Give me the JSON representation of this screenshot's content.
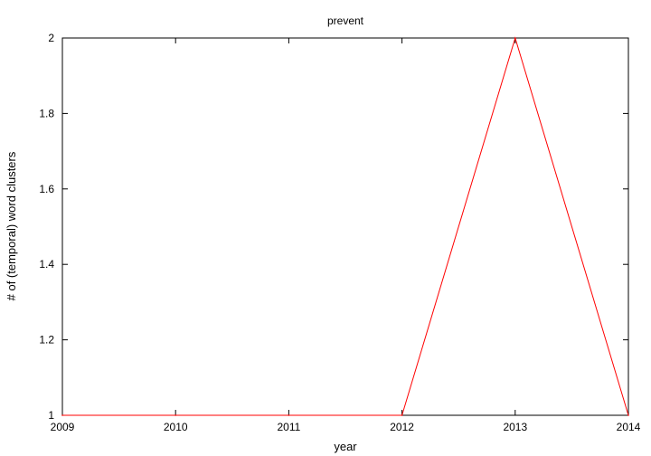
{
  "chart_data": {
    "type": "line",
    "title": "prevent",
    "xlabel": "year",
    "ylabel": "# of (temporal) word clusters",
    "x": [
      2009,
      2010,
      2011,
      2012,
      2013,
      2014
    ],
    "series": [
      {
        "values": [
          1,
          1,
          1,
          1,
          2,
          1
        ],
        "color": "#ff0000"
      }
    ],
    "xlim": [
      2009,
      2014
    ],
    "ylim": [
      1,
      2
    ],
    "xticks": [
      "2009",
      "2010",
      "2011",
      "2012",
      "2013",
      "2014"
    ],
    "yticks": [
      "1",
      "1.2",
      "1.4",
      "1.6",
      "1.8",
      "2"
    ],
    "grid": false,
    "legend": "none"
  }
}
